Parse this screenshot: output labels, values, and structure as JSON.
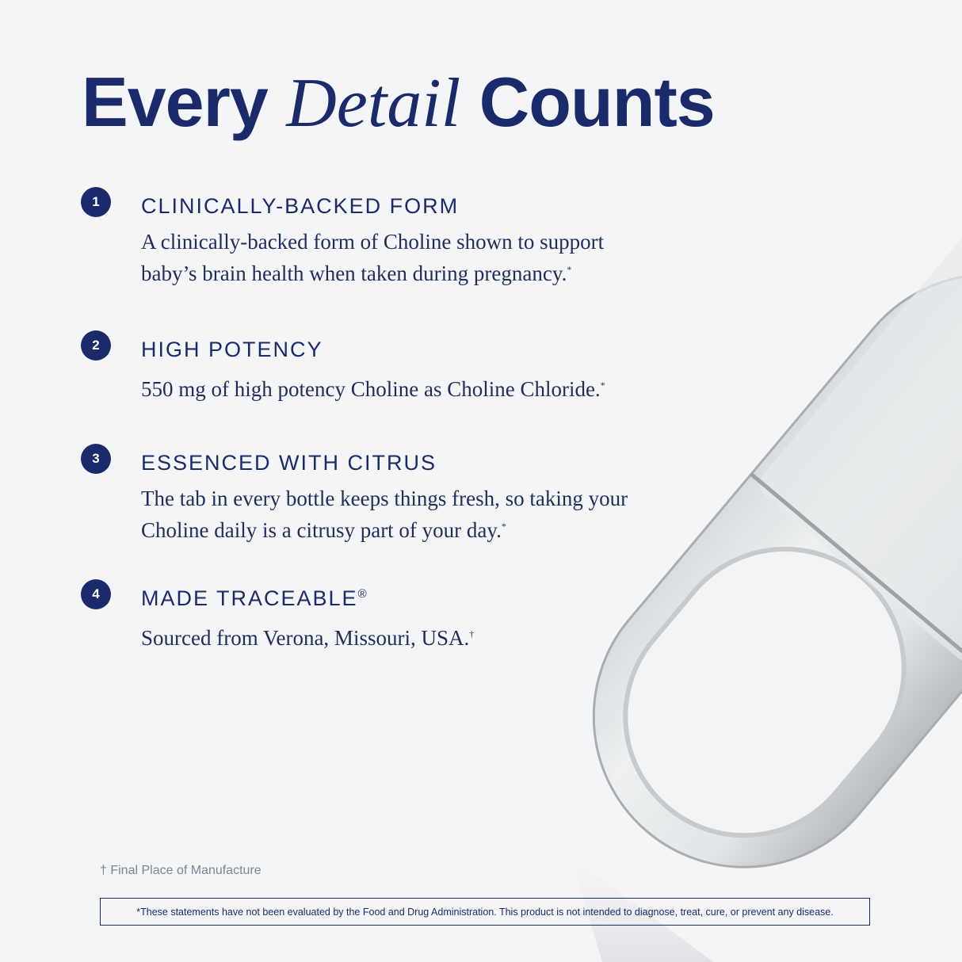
{
  "headline": {
    "part1": "Every ",
    "italic": "Detail",
    "part2": " Counts"
  },
  "items": [
    {
      "number": "1",
      "title": "CLINICALLY-BACKED FORM",
      "title_mark": "",
      "body": "A clinically-backed form of Choline shown to support\nbaby’s brain health when taken during pregnancy.",
      "body_mark": "*"
    },
    {
      "number": "2",
      "title": "HIGH POTENCY",
      "title_mark": "",
      "body": "550 mg of high potency Choline as Choline Chloride.",
      "body_mark": "*"
    },
    {
      "number": "3",
      "title": "ESSENCED WITH CITRUS",
      "title_mark": "",
      "body": "The tab in every bottle keeps things fresh, so taking your\nCholine daily is a citrusy part of your day.",
      "body_mark": "*"
    },
    {
      "number": "4",
      "title": "MADE TRACEABLE",
      "title_mark": "®",
      "body": "Sourced from Verona, Missouri, USA.",
      "body_mark": "†"
    }
  ],
  "footnote": "† Final Place of Manufacture",
  "disclaimer": "*These statements have not been evaluated by the Food and Drug Administration. This product is not intended to diagnose, treat, cure, or prevent any disease.",
  "colors": {
    "brand_navy": "#1b2a6b",
    "background": "#f4f5f7"
  },
  "image": "capsule-photo"
}
